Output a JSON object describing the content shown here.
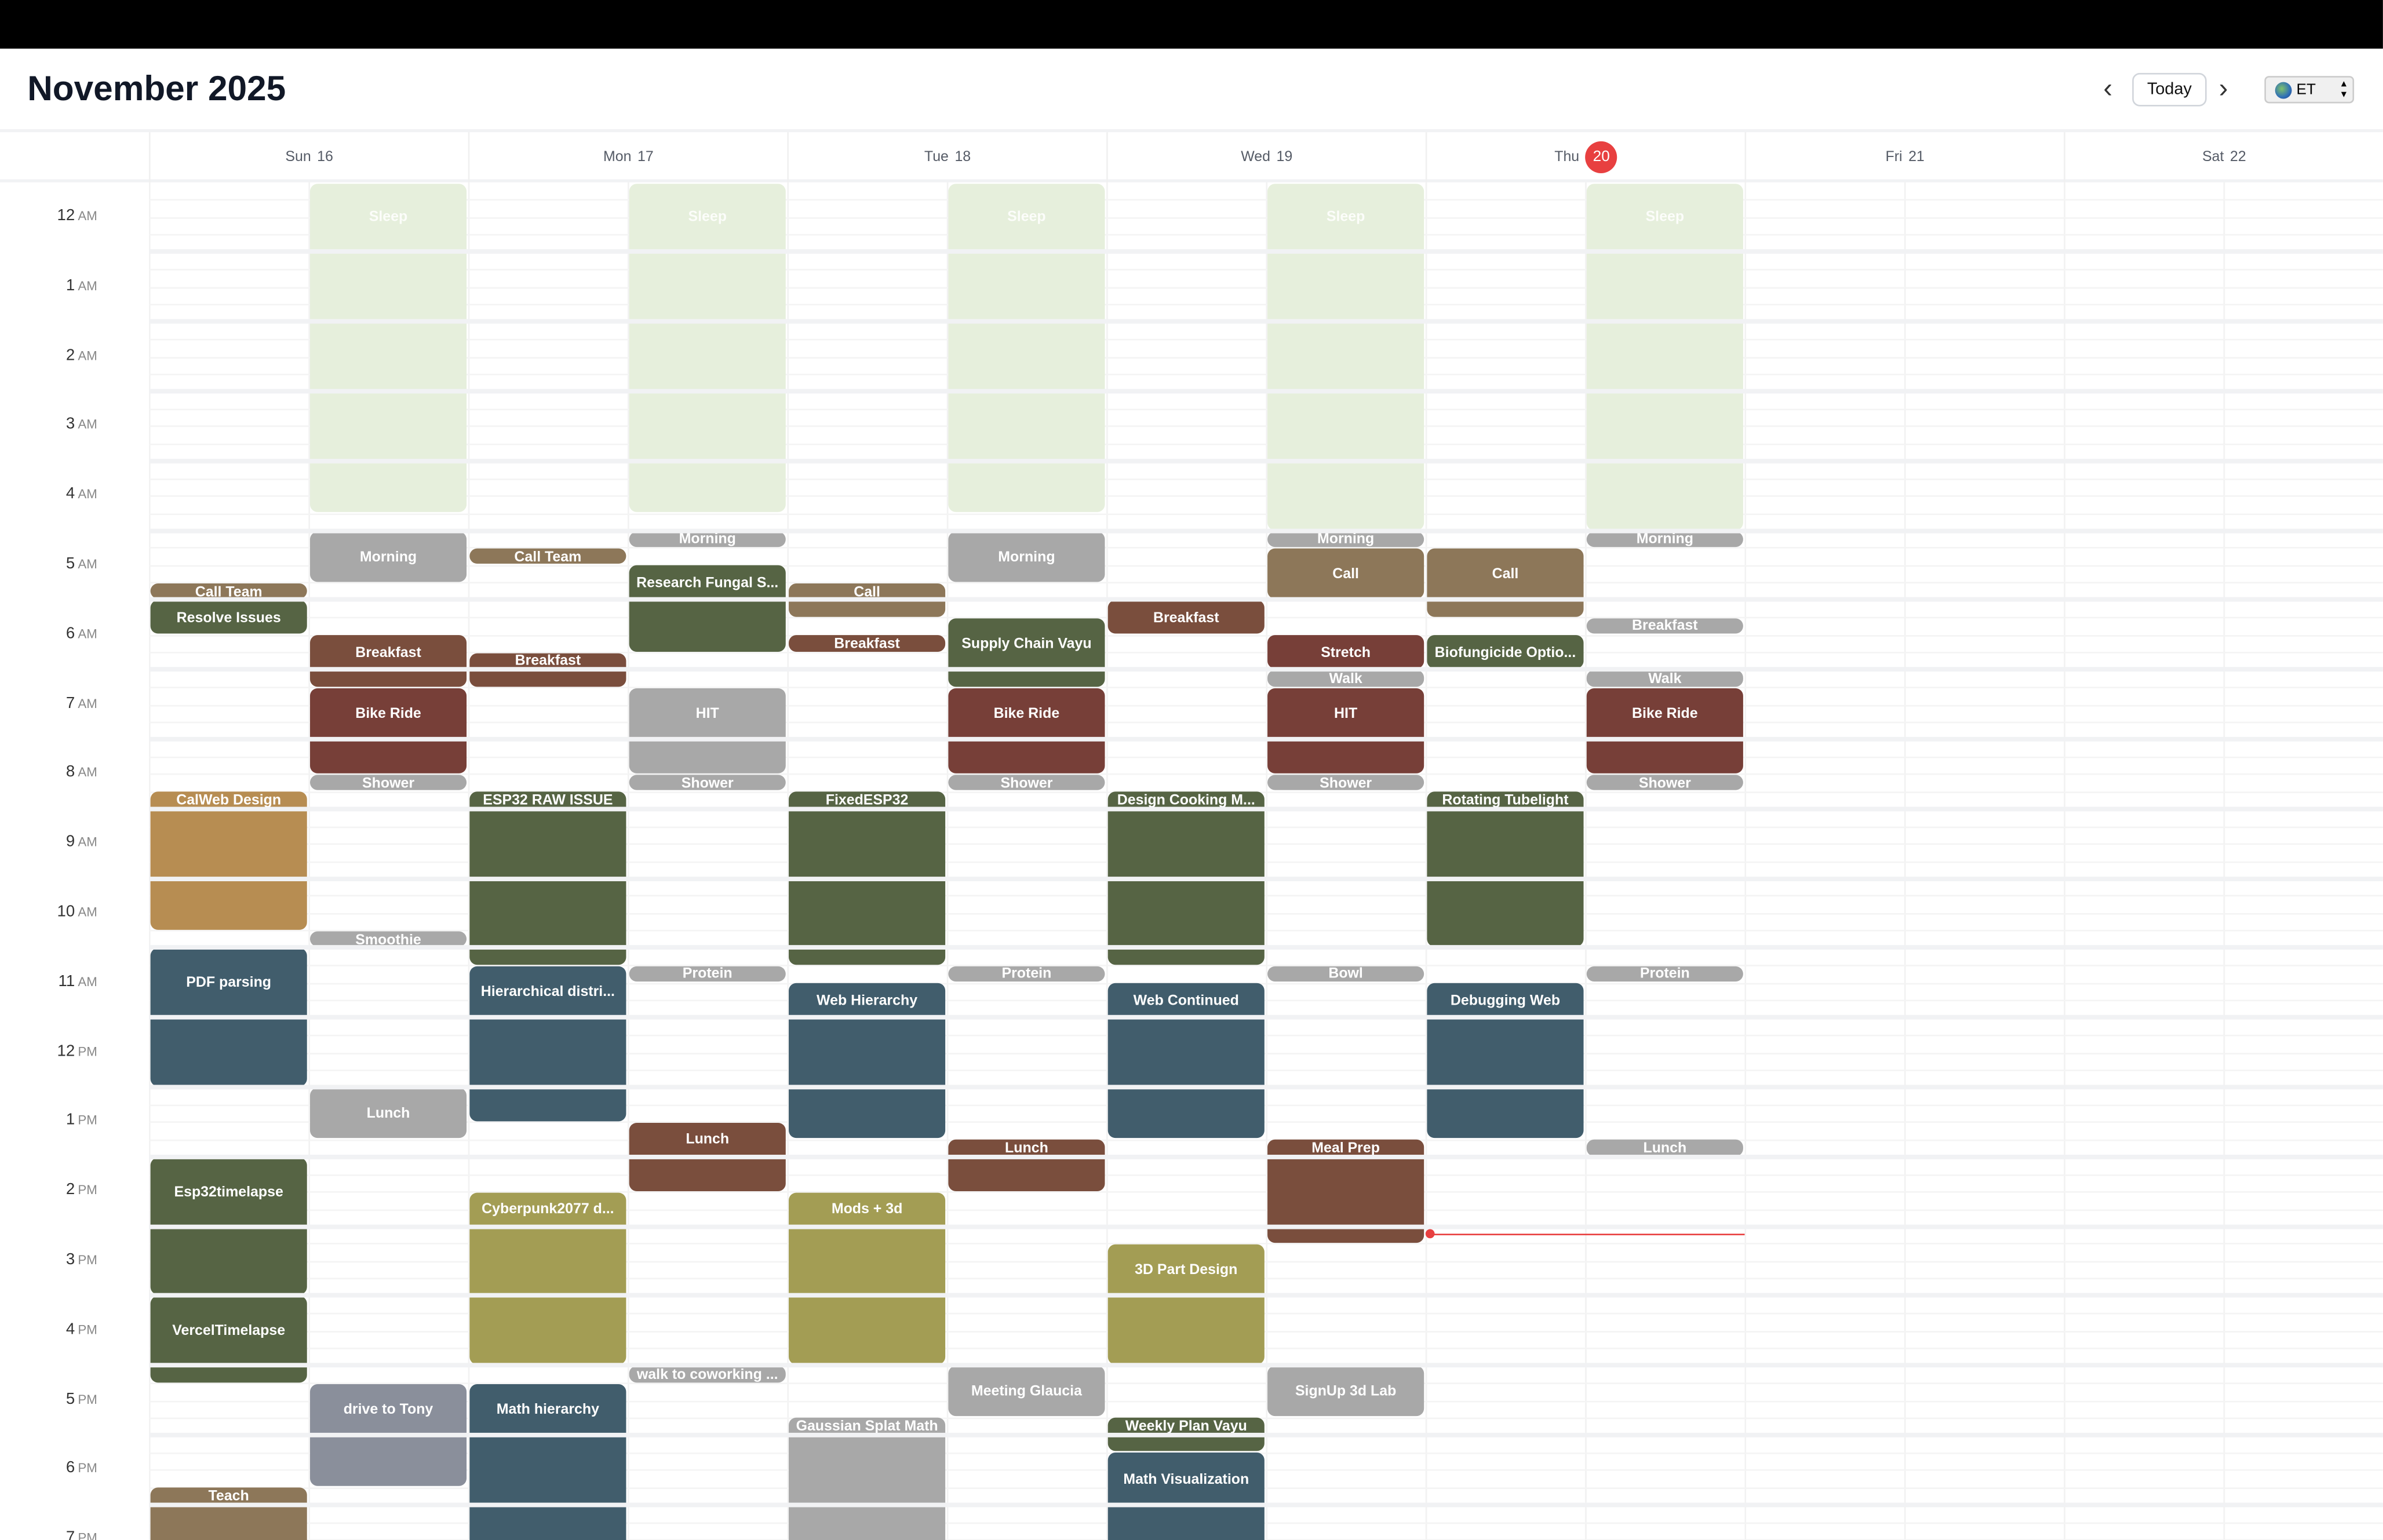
{
  "header": {
    "title": "November 2025",
    "prev_icon": "chevron-left-icon",
    "next_icon": "chevron-right-icon",
    "prev": "‹",
    "next": "›",
    "today_label": "Today",
    "timezone": "ET",
    "timezone_icon": "globe-icon"
  },
  "days": [
    {
      "dow": "Sun",
      "num": "16"
    },
    {
      "dow": "Mon",
      "num": "17"
    },
    {
      "dow": "Tue",
      "num": "18"
    },
    {
      "dow": "Wed",
      "num": "19"
    },
    {
      "dow": "Thu",
      "num": "20",
      "today": true
    },
    {
      "dow": "Fri",
      "num": "21"
    },
    {
      "dow": "Sat",
      "num": "22"
    }
  ],
  "hours": [
    {
      "n": "12",
      "ap": "AM"
    },
    {
      "n": "1",
      "ap": "AM"
    },
    {
      "n": "2",
      "ap": "AM"
    },
    {
      "n": "3",
      "ap": "AM"
    },
    {
      "n": "4",
      "ap": "AM"
    },
    {
      "n": "5",
      "ap": "AM"
    },
    {
      "n": "6",
      "ap": "AM"
    },
    {
      "n": "7",
      "ap": "AM"
    },
    {
      "n": "8",
      "ap": "AM"
    },
    {
      "n": "9",
      "ap": "AM"
    },
    {
      "n": "10",
      "ap": "AM"
    },
    {
      "n": "11",
      "ap": "AM"
    },
    {
      "n": "12",
      "ap": "PM"
    },
    {
      "n": "1",
      "ap": "PM"
    },
    {
      "n": "2",
      "ap": "PM"
    },
    {
      "n": "3",
      "ap": "PM"
    },
    {
      "n": "4",
      "ap": "PM"
    },
    {
      "n": "5",
      "ap": "PM"
    },
    {
      "n": "6",
      "ap": "PM"
    },
    {
      "n": "7",
      "ap": "PM"
    }
  ],
  "colors": {
    "sleep": "#e6efdc",
    "gray": "#a8a8a8",
    "brown": "#8d7759",
    "green": "#566444",
    "rust": "#7a4e3d",
    "red": "#773f38",
    "blue": "#415d6c",
    "olive": "#a39d54",
    "tan": "#b78d52",
    "slate": "#8a8f9b",
    "today": "#e84040"
  },
  "now": {
    "day": 4,
    "time": "15:06"
  },
  "events": [
    {
      "d": 0,
      "c": 0,
      "s": "5:45",
      "e": "6:00",
      "t": "Call Team",
      "k": "brown"
    },
    {
      "d": 0,
      "c": 0,
      "s": "6:00",
      "e": "6:30",
      "t": "Resolve Issues",
      "k": "green"
    },
    {
      "d": 0,
      "c": 0,
      "s": "8:45",
      "e": "10:45",
      "t": "CalWeb Design",
      "k": "tan"
    },
    {
      "d": 0,
      "c": 0,
      "s": "11:00",
      "e": "13:00",
      "t": "PDF parsing",
      "k": "blue"
    },
    {
      "d": 0,
      "c": 0,
      "s": "14:00",
      "e": "16:00",
      "t": "Esp32timelapse",
      "k": "green"
    },
    {
      "d": 0,
      "c": 0,
      "s": "16:00",
      "e": "17:15",
      "t": "VercelTimelapse",
      "k": "green"
    },
    {
      "d": 0,
      "c": 0,
      "s": "18:45",
      "e": "20:00",
      "t": "Teach",
      "k": "brown"
    },
    {
      "d": 0,
      "c": 1,
      "s": "0:00",
      "e": "4:45",
      "t": "Sleep",
      "k": "sleep"
    },
    {
      "d": 0,
      "c": 1,
      "s": "5:00",
      "e": "5:45",
      "t": "Morning",
      "k": "gray"
    },
    {
      "d": 0,
      "c": 1,
      "s": "6:30",
      "e": "7:15",
      "t": "Breakfast",
      "k": "rust"
    },
    {
      "d": 0,
      "c": 1,
      "s": "7:15",
      "e": "8:30",
      "t": "Bike Ride",
      "k": "red"
    },
    {
      "d": 0,
      "c": 1,
      "s": "8:30",
      "e": "8:45",
      "t": "Shower",
      "k": "gray"
    },
    {
      "d": 0,
      "c": 1,
      "s": "10:45",
      "e": "11:00",
      "t": "Smoothie",
      "k": "gray"
    },
    {
      "d": 0,
      "c": 1,
      "s": "13:00",
      "e": "13:45",
      "t": "Lunch",
      "k": "gray"
    },
    {
      "d": 0,
      "c": 1,
      "s": "17:15",
      "e": "18:45",
      "t": "drive to Tony",
      "k": "slate"
    },
    {
      "d": 1,
      "c": 0,
      "s": "5:15",
      "e": "5:30",
      "t": "Call Team",
      "k": "brown"
    },
    {
      "d": 1,
      "c": 0,
      "s": "6:45",
      "e": "7:15",
      "t": "Breakfast",
      "k": "rust"
    },
    {
      "d": 1,
      "c": 0,
      "s": "8:45",
      "e": "11:15",
      "t": "ESP32 RAW ISSUE",
      "k": "green"
    },
    {
      "d": 1,
      "c": 0,
      "s": "11:15",
      "e": "13:30",
      "t": "Hierarchical distri...",
      "k": "blue"
    },
    {
      "d": 1,
      "c": 0,
      "s": "14:30",
      "e": "17:00",
      "t": "Cyberpunk2077 d...",
      "k": "olive"
    },
    {
      "d": 1,
      "c": 0,
      "s": "17:15",
      "e": "20:00",
      "t": "Math hierarchy",
      "k": "blue"
    },
    {
      "d": 1,
      "c": 1,
      "s": "0:00",
      "e": "4:45",
      "t": "Sleep",
      "k": "sleep"
    },
    {
      "d": 1,
      "c": 1,
      "s": "5:00",
      "e": "5:15",
      "t": "Morning",
      "k": "gray"
    },
    {
      "d": 1,
      "c": 1,
      "s": "5:30",
      "e": "6:45",
      "t": "Research Fungal S...",
      "k": "green"
    },
    {
      "d": 1,
      "c": 1,
      "s": "7:15",
      "e": "8:30",
      "t": "HIT",
      "k": "gray"
    },
    {
      "d": 1,
      "c": 1,
      "s": "8:30",
      "e": "8:45",
      "t": "Shower",
      "k": "gray"
    },
    {
      "d": 1,
      "c": 1,
      "s": "11:15",
      "e": "11:30",
      "t": "Protein",
      "k": "gray"
    },
    {
      "d": 1,
      "c": 1,
      "s": "13:30",
      "e": "14:30",
      "t": "Lunch",
      "k": "rust"
    },
    {
      "d": 1,
      "c": 1,
      "s": "17:00",
      "e": "17:15",
      "t": "walk to coworking ...",
      "k": "gray"
    },
    {
      "d": 2,
      "c": 0,
      "s": "5:45",
      "e": "6:15",
      "t": "Call",
      "k": "brown"
    },
    {
      "d": 2,
      "c": 0,
      "s": "6:30",
      "e": "6:45",
      "t": "Breakfast",
      "k": "rust"
    },
    {
      "d": 2,
      "c": 0,
      "s": "8:45",
      "e": "11:15",
      "t": "FixedESP32",
      "k": "green"
    },
    {
      "d": 2,
      "c": 0,
      "s": "11:30",
      "e": "13:45",
      "t": "Web Hierarchy",
      "k": "blue"
    },
    {
      "d": 2,
      "c": 0,
      "s": "14:30",
      "e": "17:00",
      "t": "Mods + 3d",
      "k": "olive"
    },
    {
      "d": 2,
      "c": 0,
      "s": "17:45",
      "e": "20:00",
      "t": "Gaussian Splat Math",
      "k": "gray"
    },
    {
      "d": 2,
      "c": 1,
      "s": "0:00",
      "e": "4:45",
      "t": "Sleep",
      "k": "sleep"
    },
    {
      "d": 2,
      "c": 1,
      "s": "5:00",
      "e": "5:45",
      "t": "Morning",
      "k": "gray"
    },
    {
      "d": 2,
      "c": 1,
      "s": "6:15",
      "e": "7:15",
      "t": "Supply Chain Vayu",
      "k": "green"
    },
    {
      "d": 2,
      "c": 1,
      "s": "7:15",
      "e": "8:30",
      "t": "Bike Ride",
      "k": "red"
    },
    {
      "d": 2,
      "c": 1,
      "s": "8:30",
      "e": "8:45",
      "t": "Shower",
      "k": "gray"
    },
    {
      "d": 2,
      "c": 1,
      "s": "11:15",
      "e": "11:30",
      "t": "Protein",
      "k": "gray"
    },
    {
      "d": 2,
      "c": 1,
      "s": "13:45",
      "e": "14:30",
      "t": "Lunch",
      "k": "rust"
    },
    {
      "d": 2,
      "c": 1,
      "s": "17:00",
      "e": "17:45",
      "t": "Meeting Glaucia",
      "k": "gray"
    },
    {
      "d": 3,
      "c": 0,
      "s": "6:00",
      "e": "6:30",
      "t": "Breakfast",
      "k": "rust"
    },
    {
      "d": 3,
      "c": 0,
      "s": "8:45",
      "e": "11:15",
      "t": "Design Cooking M...",
      "k": "green"
    },
    {
      "d": 3,
      "c": 0,
      "s": "11:30",
      "e": "13:45",
      "t": "Web Continued",
      "k": "blue"
    },
    {
      "d": 3,
      "c": 0,
      "s": "15:15",
      "e": "17:00",
      "t": "3D Part Design",
      "k": "olive"
    },
    {
      "d": 3,
      "c": 0,
      "s": "17:45",
      "e": "18:15",
      "t": "Weekly Plan Vayu",
      "k": "green"
    },
    {
      "d": 3,
      "c": 0,
      "s": "18:15",
      "e": "20:00",
      "t": "Math Visualization",
      "k": "blue"
    },
    {
      "d": 3,
      "c": 1,
      "s": "0:00",
      "e": "5:00",
      "t": "Sleep",
      "k": "sleep"
    },
    {
      "d": 3,
      "c": 1,
      "s": "5:00",
      "e": "5:15",
      "t": "Morning",
      "k": "gray"
    },
    {
      "d": 3,
      "c": 1,
      "s": "5:15",
      "e": "6:00",
      "t": "Call",
      "k": "brown"
    },
    {
      "d": 3,
      "c": 1,
      "s": "6:30",
      "e": "7:00",
      "t": "Stretch",
      "k": "red"
    },
    {
      "d": 3,
      "c": 1,
      "s": "7:00",
      "e": "7:15",
      "t": "Walk",
      "k": "gray"
    },
    {
      "d": 3,
      "c": 1,
      "s": "7:15",
      "e": "8:30",
      "t": "HIT",
      "k": "red"
    },
    {
      "d": 3,
      "c": 1,
      "s": "8:30",
      "e": "8:45",
      "t": "Shower",
      "k": "gray"
    },
    {
      "d": 3,
      "c": 1,
      "s": "11:15",
      "e": "11:30",
      "t": "Bowl",
      "k": "gray"
    },
    {
      "d": 3,
      "c": 1,
      "s": "13:45",
      "e": "15:15",
      "t": "Meal Prep",
      "k": "rust"
    },
    {
      "d": 3,
      "c": 1,
      "s": "17:00",
      "e": "17:45",
      "t": "SignUp 3d Lab",
      "k": "gray"
    },
    {
      "d": 4,
      "c": 0,
      "s": "5:15",
      "e": "6:15",
      "t": "Call",
      "k": "brown"
    },
    {
      "d": 4,
      "c": 0,
      "s": "6:30",
      "e": "7:00",
      "t": "Biofungicide Optio...",
      "k": "green"
    },
    {
      "d": 4,
      "c": 0,
      "s": "8:45",
      "e": "11:00",
      "t": "Rotating Tubelight",
      "k": "green"
    },
    {
      "d": 4,
      "c": 0,
      "s": "11:30",
      "e": "13:45",
      "t": "Debugging Web",
      "k": "blue"
    },
    {
      "d": 4,
      "c": 1,
      "s": "0:00",
      "e": "5:00",
      "t": "Sleep",
      "k": "sleep"
    },
    {
      "d": 4,
      "c": 1,
      "s": "5:00",
      "e": "5:15",
      "t": "Morning",
      "k": "gray"
    },
    {
      "d": 4,
      "c": 1,
      "s": "6:15",
      "e": "6:30",
      "t": "Breakfast",
      "k": "gray"
    },
    {
      "d": 4,
      "c": 1,
      "s": "7:00",
      "e": "7:15",
      "t": "Walk",
      "k": "gray"
    },
    {
      "d": 4,
      "c": 1,
      "s": "7:15",
      "e": "8:30",
      "t": "Bike Ride",
      "k": "red"
    },
    {
      "d": 4,
      "c": 1,
      "s": "8:30",
      "e": "8:45",
      "t": "Shower",
      "k": "gray"
    },
    {
      "d": 4,
      "c": 1,
      "s": "11:15",
      "e": "11:30",
      "t": "Protein",
      "k": "gray"
    },
    {
      "d": 4,
      "c": 1,
      "s": "13:45",
      "e": "14:00",
      "t": "Lunch",
      "k": "gray"
    }
  ]
}
